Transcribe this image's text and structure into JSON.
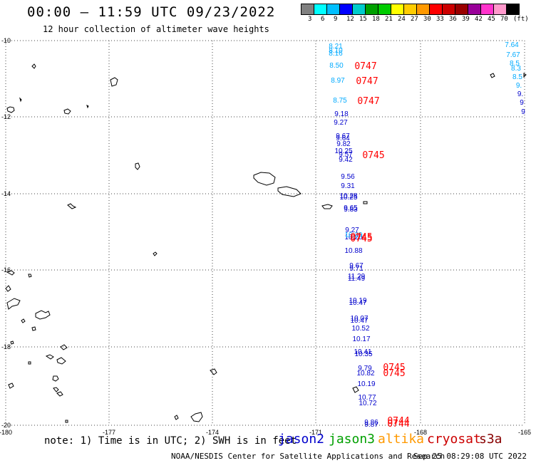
{
  "header": {
    "title": "00:00 — 11:59 UTC 09/23/2022",
    "subtitle": "12 hour collection of altimeter wave heights"
  },
  "legend": {
    "colors": [
      "#808080",
      "#00ffff",
      "#00bfff",
      "#0000ff",
      "#00cccc",
      "#00a000",
      "#00cc00",
      "#ffff00",
      "#ffcc00",
      "#ff9900",
      "#ff0000",
      "#cc0000",
      "#990000",
      "#990099",
      "#ff33cc",
      "#ff99cc",
      "#000000"
    ],
    "labels": [
      "3",
      "6",
      "9",
      "12",
      "15",
      "18",
      "21",
      "24",
      "27",
      "30",
      "33",
      "36",
      "39",
      "42",
      "45",
      "70",
      "(ft)"
    ]
  },
  "map": {
    "lat_labels": [
      "-10",
      "-12",
      "-14",
      "-16",
      "-18",
      "-20"
    ],
    "lon_labels": [
      "-180",
      "-177",
      "-174",
      "-171",
      "-168",
      "-165"
    ]
  },
  "observations": [
    {
      "text": "8.21",
      "color": "#00aaff"
    },
    {
      "text": "8.10",
      "color": "#00aaff"
    },
    {
      "text": "8.16",
      "color": "#00aaff"
    },
    {
      "text": "8.50",
      "color": "#00aaff"
    },
    {
      "text": "8.97",
      "color": "#00aaff"
    },
    {
      "text": "8.75",
      "color": "#00aaff"
    },
    {
      "text": "9.18",
      "color": "#0000cc"
    },
    {
      "text": "9.27",
      "color": "#0000cc"
    },
    {
      "text": "9.67",
      "color": "#0000cc"
    },
    {
      "text": "9.64",
      "color": "#0000cc"
    },
    {
      "text": "9.82",
      "color": "#0000cc"
    },
    {
      "text": "10.25",
      "color": "#0000cc"
    },
    {
      "text": "9.57",
      "color": "#0000cc"
    },
    {
      "text": "9.42",
      "color": "#0000cc"
    },
    {
      "text": "9.56",
      "color": "#0000cc"
    },
    {
      "text": "9.31",
      "color": "#0000cc"
    },
    {
      "text": "10.28",
      "color": "#0000cc"
    },
    {
      "text": "10.25",
      "color": "#0000cc"
    },
    {
      "text": "9.65",
      "color": "#0000cc"
    },
    {
      "text": "9.83",
      "color": "#0000cc"
    },
    {
      "text": "9.27",
      "color": "#0000cc"
    },
    {
      "text": "10.20",
      "color": "#0000cc"
    },
    {
      "text": "10.29",
      "color": "#00aaff"
    },
    {
      "text": "10.88",
      "color": "#0000cc"
    },
    {
      "text": "9.67",
      "color": "#0000cc"
    },
    {
      "text": "9.71",
      "color": "#0000cc"
    },
    {
      "text": "11.29",
      "color": "#0000cc"
    },
    {
      "text": "11.49",
      "color": "#0000cc"
    },
    {
      "text": "10.19",
      "color": "#0000cc"
    },
    {
      "text": "10.47",
      "color": "#0000cc"
    },
    {
      "text": "10.07",
      "color": "#0000cc"
    },
    {
      "text": "10.47",
      "color": "#0000cc"
    },
    {
      "text": "10.52",
      "color": "#0000cc"
    },
    {
      "text": "10.17",
      "color": "#0000cc"
    },
    {
      "text": "10.41",
      "color": "#0000cc"
    },
    {
      "text": "10.35",
      "color": "#0000cc"
    },
    {
      "text": "9.79",
      "color": "#0000cc"
    },
    {
      "text": "10.82",
      "color": "#0000cc"
    },
    {
      "text": "10.19",
      "color": "#0000cc"
    },
    {
      "text": "10.77",
      "color": "#0000cc"
    },
    {
      "text": "10.72",
      "color": "#0000cc"
    },
    {
      "text": "9.86",
      "color": "#0000cc"
    },
    {
      "text": "9.87",
      "color": "#0000cc"
    },
    {
      "text": "7.64",
      "color": "#00aaff"
    },
    {
      "text": "7.67",
      "color": "#00aaff"
    },
    {
      "text": "8.5",
      "color": "#00aaff"
    },
    {
      "text": "8.3",
      "color": "#00aaff"
    },
    {
      "text": "8.5",
      "color": "#00aaff"
    },
    {
      "text": "9.",
      "color": "#00aaff"
    },
    {
      "text": "9.",
      "color": "#0000cc"
    },
    {
      "text": "9",
      "color": "#0000cc"
    },
    {
      "text": "9",
      "color": "#0000cc"
    }
  ],
  "times": [
    {
      "text": "0747",
      "color": "#ff0000"
    },
    {
      "text": "0747",
      "color": "#ff0000"
    },
    {
      "text": "0747",
      "color": "#ff0000"
    },
    {
      "text": "0745",
      "color": "#ff0000"
    },
    {
      "text": "0745",
      "color": "#ff0000"
    },
    {
      "text": "0745",
      "color": "#ff0000"
    },
    {
      "text": "0745",
      "color": "#ff0000"
    },
    {
      "text": "0745",
      "color": "#ff0000"
    },
    {
      "text": "0744",
      "color": "#ff0000"
    },
    {
      "text": "0744",
      "color": "#ff0000"
    }
  ],
  "footer": {
    "note": "note: 1) Time is in UTC; 2) SWH is in feet",
    "satellites": [
      {
        "name": "jason2",
        "color": "#0000cc"
      },
      {
        "name": "jason3",
        "color": "#00a000"
      },
      {
        "name": "altika",
        "color": "#ff9900"
      },
      {
        "name": "cryosat",
        "color": "#cc0000"
      },
      {
        "name": "s3a",
        "color": "#880000"
      }
    ],
    "credit": "NOAA/NESDIS Center for Satellite Applications and Research",
    "timestamp": "Sep 25 08:29:08 UTC 2022"
  }
}
